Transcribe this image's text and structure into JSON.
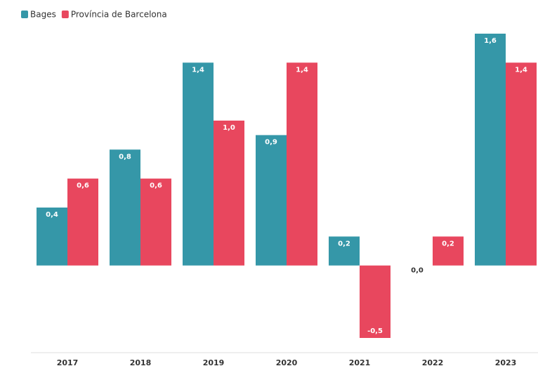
{
  "chart_data": {
    "type": "bar",
    "categories": [
      "2017",
      "2018",
      "2019",
      "2020",
      "2021",
      "2022",
      "2023"
    ],
    "series": [
      {
        "name": "Bages",
        "color": "#3597a8",
        "values": [
          0.4,
          0.8,
          1.4,
          0.9,
          0.2,
          0.0,
          1.6
        ],
        "value_labels": [
          "0,4",
          "0,8",
          "1,4",
          "0,9",
          "0,2",
          "0,0",
          "1,6"
        ]
      },
      {
        "name": "Província de Barcelona",
        "color": "#e8475e",
        "values": [
          0.6,
          0.6,
          1.0,
          1.4,
          -0.5,
          0.2,
          1.4
        ],
        "value_labels": [
          "0,6",
          "0,6",
          "1,0",
          "1,4",
          "-0,5",
          "0,2",
          "1,4"
        ]
      }
    ],
    "legend": "top-left"
  }
}
